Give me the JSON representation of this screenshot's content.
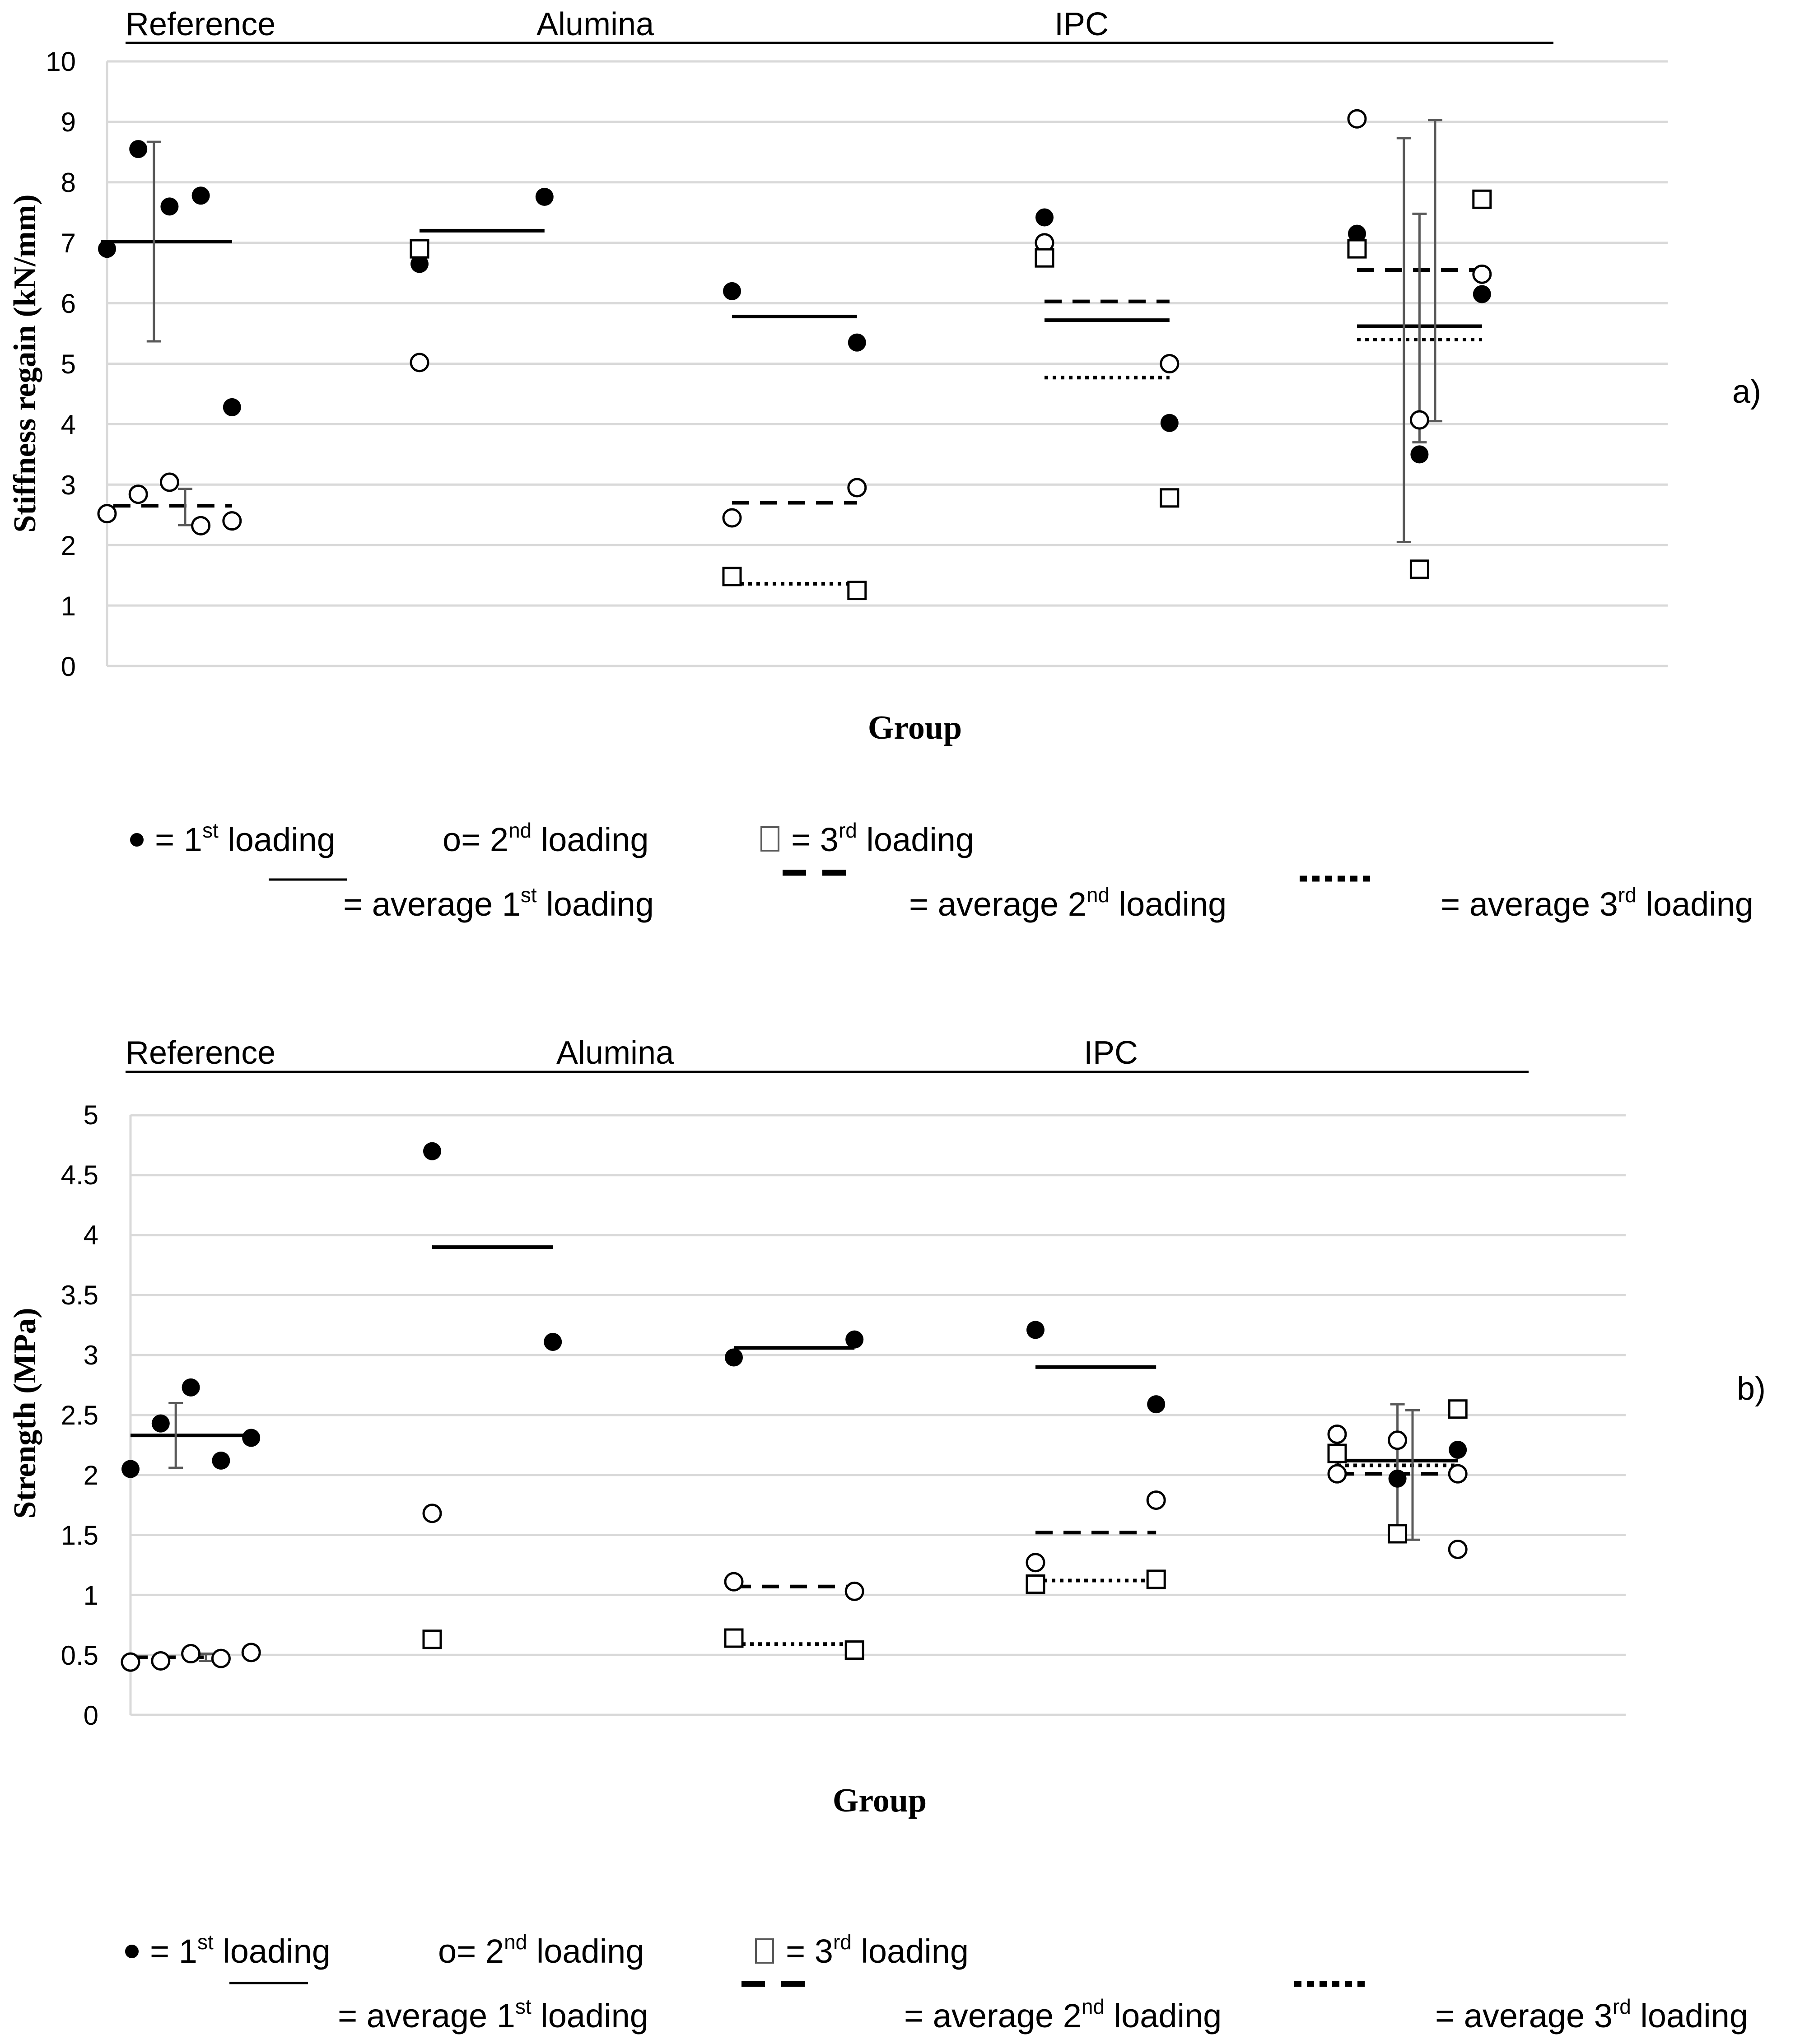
{
  "chart_data": [
    {
      "type": "scatter",
      "panel_label": "a)",
      "title": "",
      "xlabel": "Group",
      "ylabel": "Stiffness  regain (kN/mm)",
      "ylim": [
        0,
        10
      ],
      "yticks": [
        "0",
        "1",
        "2",
        "3",
        "4",
        "5",
        "6",
        "7",
        "8",
        "9",
        "10"
      ],
      "group_labels": [
        "Reference",
        "Alumina",
        "IPC"
      ],
      "series": [
        {
          "name": "1st loading",
          "marker": "filled-circle",
          "points": [
            {
              "x": 0,
              "y": 6.9
            },
            {
              "x": 1,
              "y": 8.55
            },
            {
              "x": 2,
              "y": 7.6
            },
            {
              "x": 3,
              "y": 7.78
            },
            {
              "x": 4,
              "y": 4.28
            },
            {
              "x": 10,
              "y": 6.65
            },
            {
              "x": 14,
              "y": 7.76
            },
            {
              "x": 20,
              "y": 6.2
            },
            {
              "x": 24,
              "y": 5.35
            },
            {
              "x": 30,
              "y": 7.42
            },
            {
              "x": 34,
              "y": 4.02
            },
            {
              "x": 40,
              "y": 7.15
            },
            {
              "x": 42,
              "y": 3.5
            },
            {
              "x": 44,
              "y": 6.15
            }
          ]
        },
        {
          "name": "2nd loading",
          "marker": "open-circle",
          "points": [
            {
              "x": 0,
              "y": 2.52
            },
            {
              "x": 1,
              "y": 2.84
            },
            {
              "x": 2,
              "y": 3.04
            },
            {
              "x": 3,
              "y": 2.32
            },
            {
              "x": 4,
              "y": 2.4
            },
            {
              "x": 10,
              "y": 5.02
            },
            {
              "x": 20,
              "y": 2.45
            },
            {
              "x": 24,
              "y": 2.95
            },
            {
              "x": 30,
              "y": 7.0
            },
            {
              "x": 34,
              "y": 5.0
            },
            {
              "x": 40,
              "y": 9.05
            },
            {
              "x": 42,
              "y": 4.07
            },
            {
              "x": 44,
              "y": 6.48
            }
          ]
        },
        {
          "name": "3rd loading",
          "marker": "open-square",
          "points": [
            {
              "x": 10,
              "y": 6.9
            },
            {
              "x": 20,
              "y": 1.48
            },
            {
              "x": 24,
              "y": 1.25
            },
            {
              "x": 30,
              "y": 6.75
            },
            {
              "x": 34,
              "y": 2.78
            },
            {
              "x": 40,
              "y": 6.9
            },
            {
              "x": 42,
              "y": 1.6
            },
            {
              "x": 44,
              "y": 7.72
            }
          ]
        }
      ],
      "averages": [
        {
          "series": "average 1st loading",
          "style": "solid",
          "x0": -0.2,
          "x1": 4.0,
          "y": 7.02
        },
        {
          "series": "average 2nd loading",
          "style": "dashed",
          "x0": 0.2,
          "x1": 4.0,
          "y": 2.65
        },
        {
          "series": "average 1st loading",
          "style": "solid",
          "x0": 10.0,
          "x1": 14.0,
          "y": 7.2
        },
        {
          "series": "average 1st loading",
          "style": "solid",
          "x0": 20.0,
          "x1": 24.0,
          "y": 5.78
        },
        {
          "series": "average 2nd loading",
          "style": "dashed",
          "x0": 20.0,
          "x1": 24.0,
          "y": 2.7
        },
        {
          "series": "average 3rd loading",
          "style": "dotted",
          "x0": 20.0,
          "x1": 24.0,
          "y": 1.36
        },
        {
          "series": "average 1st loading",
          "style": "solid",
          "x0": 30.0,
          "x1": 34.0,
          "y": 5.72
        },
        {
          "series": "average 2nd loading",
          "style": "dashed",
          "x0": 30.0,
          "x1": 34.0,
          "y": 6.03
        },
        {
          "series": "average 3rd loading",
          "style": "dotted",
          "x0": 30.0,
          "x1": 34.0,
          "y": 4.77
        },
        {
          "series": "average 1st loading",
          "style": "solid",
          "x0": 40.0,
          "x1": 44.0,
          "y": 5.62
        },
        {
          "series": "average 2nd loading",
          "style": "dashed",
          "x0": 40.0,
          "x1": 44.0,
          "y": 6.55
        },
        {
          "series": "average 3rd loading",
          "style": "dotted",
          "x0": 40.0,
          "x1": 44.0,
          "y": 5.4
        }
      ],
      "error_bars": [
        {
          "x": 1.5,
          "low": 5.37,
          "high": 8.67
        },
        {
          "x": 2.5,
          "low": 2.33,
          "high": 2.93
        },
        {
          "x": 41.5,
          "low": 2.05,
          "high": 8.73
        },
        {
          "x": 42.0,
          "low": 3.7,
          "high": 7.48
        },
        {
          "x": 42.5,
          "low": 4.05,
          "high": 9.03
        }
      ]
    },
    {
      "type": "scatter",
      "panel_label": "b)",
      "title": "",
      "xlabel": "Group",
      "ylabel": "Strength (MPa)",
      "ylim": [
        0,
        5
      ],
      "yticks": [
        "0",
        "0.5",
        "1",
        "1.5",
        "2",
        "2.5",
        "3",
        "3.5",
        "4",
        "4.5",
        "5"
      ],
      "group_labels": [
        "Reference",
        "Alumina",
        "IPC"
      ],
      "series": [
        {
          "name": "1st loading",
          "marker": "filled-circle",
          "points": [
            {
              "x": 0,
              "y": 2.05
            },
            {
              "x": 1,
              "y": 2.43
            },
            {
              "x": 2,
              "y": 2.73
            },
            {
              "x": 3,
              "y": 2.12
            },
            {
              "x": 4,
              "y": 2.31
            },
            {
              "x": 10,
              "y": 4.7
            },
            {
              "x": 14,
              "y": 3.11
            },
            {
              "x": 20,
              "y": 2.98
            },
            {
              "x": 24,
              "y": 3.13
            },
            {
              "x": 30,
              "y": 3.21
            },
            {
              "x": 34,
              "y": 2.59
            },
            {
              "x": 40,
              "y": 2.17
            },
            {
              "x": 42,
              "y": 1.97
            },
            {
              "x": 44,
              "y": 2.21
            }
          ]
        },
        {
          "name": "2nd loading",
          "marker": "open-circle",
          "points": [
            {
              "x": 0,
              "y": 0.44
            },
            {
              "x": 1,
              "y": 0.45
            },
            {
              "x": 2,
              "y": 0.51
            },
            {
              "x": 3,
              "y": 0.47
            },
            {
              "x": 4,
              "y": 0.52
            },
            {
              "x": 10,
              "y": 1.68
            },
            {
              "x": 20,
              "y": 1.11
            },
            {
              "x": 24,
              "y": 1.03
            },
            {
              "x": 30,
              "y": 1.27
            },
            {
              "x": 34,
              "y": 1.79
            },
            {
              "x": 40,
              "y": 2.34
            },
            {
              "x": 40,
              "y": 2.01
            },
            {
              "x": 42,
              "y": 2.29
            },
            {
              "x": 44,
              "y": 2.01
            },
            {
              "x": 44,
              "y": 1.38
            }
          ]
        },
        {
          "name": "3rd loading",
          "marker": "open-square",
          "points": [
            {
              "x": 10,
              "y": 0.63
            },
            {
              "x": 20,
              "y": 0.64
            },
            {
              "x": 24,
              "y": 0.54
            },
            {
              "x": 30,
              "y": 1.09
            },
            {
              "x": 34,
              "y": 1.13
            },
            {
              "x": 40,
              "y": 2.18
            },
            {
              "x": 42,
              "y": 1.51
            },
            {
              "x": 44,
              "y": 2.55
            }
          ]
        }
      ],
      "averages": [
        {
          "series": "average 1st loading",
          "style": "solid",
          "x0": 0.0,
          "x1": 4.0,
          "y": 2.33
        },
        {
          "series": "average 2nd loading",
          "style": "dashed",
          "x0": 0.0,
          "x1": 3.0,
          "y": 0.48
        },
        {
          "series": "average 1st loading",
          "style": "solid",
          "x0": 10.0,
          "x1": 14.0,
          "y": 3.9
        },
        {
          "series": "average 1st loading",
          "style": "solid",
          "x0": 20.0,
          "x1": 24.0,
          "y": 3.06
        },
        {
          "series": "average 2nd loading",
          "style": "dashed",
          "x0": 20.0,
          "x1": 24.0,
          "y": 1.07
        },
        {
          "series": "average 3rd loading",
          "style": "dotted",
          "x0": 20.0,
          "x1": 24.0,
          "y": 0.59
        },
        {
          "series": "average 1st loading",
          "style": "solid",
          "x0": 30.0,
          "x1": 34.0,
          "y": 2.9
        },
        {
          "series": "average 2nd loading",
          "style": "dashed",
          "x0": 30.0,
          "x1": 34.0,
          "y": 1.52
        },
        {
          "series": "average 3rd loading",
          "style": "dotted",
          "x0": 30.0,
          "x1": 34.0,
          "y": 1.12
        },
        {
          "series": "average 1st loading",
          "style": "solid",
          "x0": 40.0,
          "x1": 44.0,
          "y": 2.12
        },
        {
          "series": "average 2nd loading",
          "style": "dashed",
          "x0": 40.0,
          "x1": 44.0,
          "y": 2.01
        },
        {
          "series": "average 3rd loading",
          "style": "dotted",
          "x0": 40.0,
          "x1": 44.0,
          "y": 2.08
        }
      ],
      "error_bars": [
        {
          "x": 1.5,
          "low": 2.06,
          "high": 2.6
        },
        {
          "x": 2.5,
          "low": 0.45,
          "high": 0.51
        },
        {
          "x": 42.0,
          "low": 1.55,
          "high": 2.59
        },
        {
          "x": 42.5,
          "low": 1.46,
          "high": 2.54
        }
      ]
    }
  ],
  "legend": {
    "filled_circle_label": "= 1",
    "open_circle_label": "o= 2",
    "open_square_label": "= 3",
    "loading_word": "loading",
    "average_prefix": "= average 1",
    "average_prefix_2": "= average 2",
    "average_prefix_3": "= average 3",
    "sup_st": "st",
    "sup_nd": "nd",
    "sup_rd": "rd"
  },
  "colors": {
    "axis": "#000000",
    "grid": "#d9d9d9",
    "errorbar": "#595959",
    "marker": "#000000",
    "square_gray": "#595959"
  }
}
